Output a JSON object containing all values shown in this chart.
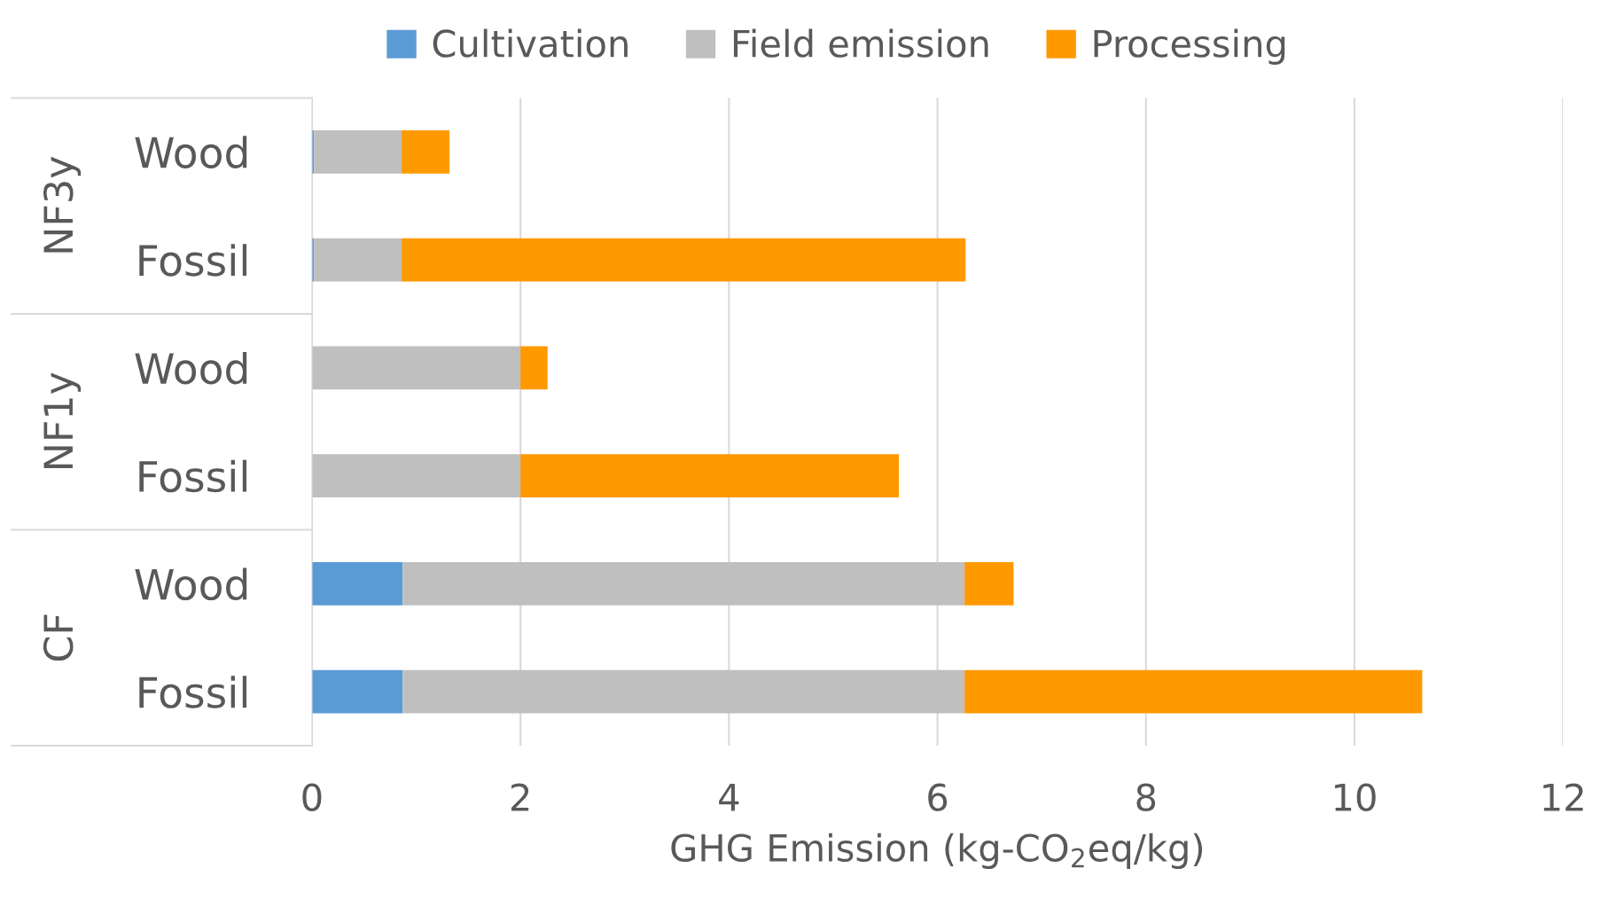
{
  "chart_data": {
    "type": "bar",
    "orientation": "horizontal",
    "stacked": true,
    "categories": [
      "Wood",
      "Fossil",
      "Wood",
      "Fossil",
      "Wood",
      "Fossil"
    ],
    "series": [
      {
        "name": "Cultivation",
        "color": "#5b9bd5",
        "values": [
          0.02,
          0.02,
          0,
          0,
          0.87,
          0.87
        ]
      },
      {
        "name": "Field emission",
        "color": "#bfbfbf",
        "values": [
          0.84,
          0.84,
          2.0,
          2.0,
          5.39,
          5.39
        ]
      },
      {
        "name": "Processing",
        "color": "#ff9900",
        "values": [
          0.46,
          5.41,
          0.26,
          3.63,
          0.47,
          4.39
        ]
      }
    ],
    "annotations": [
      "NF3y",
      "NF1y",
      "CF"
    ],
    "xlabel": "GHG Emission (kg-CO$_{2}$eq/kg)",
    "xlim": [
      0,
      12
    ],
    "xticks": [
      0,
      2,
      4,
      6,
      8,
      10,
      12
    ],
    "grid": "x",
    "legend": "top"
  }
}
